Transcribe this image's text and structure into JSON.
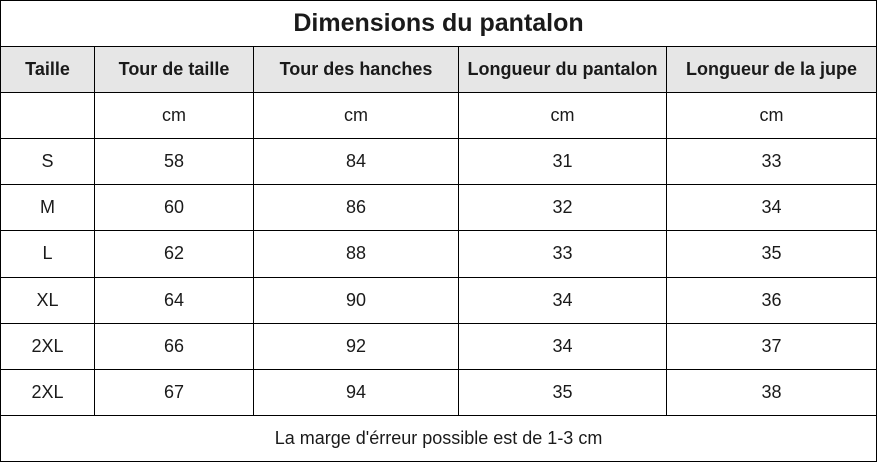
{
  "title": "Dimensions du pantalon",
  "columns": [
    "Taille",
    "Tour de taille",
    "Tour des hanches",
    "Longueur du pantalon",
    "Longueur de la jupe"
  ],
  "units": [
    "",
    "cm",
    "cm",
    "cm",
    "cm"
  ],
  "rows": [
    [
      "S",
      "58",
      "84",
      "31",
      "33"
    ],
    [
      "M",
      "60",
      "86",
      "32",
      "34"
    ],
    [
      "L",
      "62",
      "88",
      "33",
      "35"
    ],
    [
      "XL",
      "64",
      "90",
      "34",
      "36"
    ],
    [
      "2XL",
      "66",
      "92",
      "34",
      "37"
    ],
    [
      "2XL",
      "67",
      "94",
      "35",
      "38"
    ]
  ],
  "footer": "La marge d'érreur possible est de 1-3 cm"
}
